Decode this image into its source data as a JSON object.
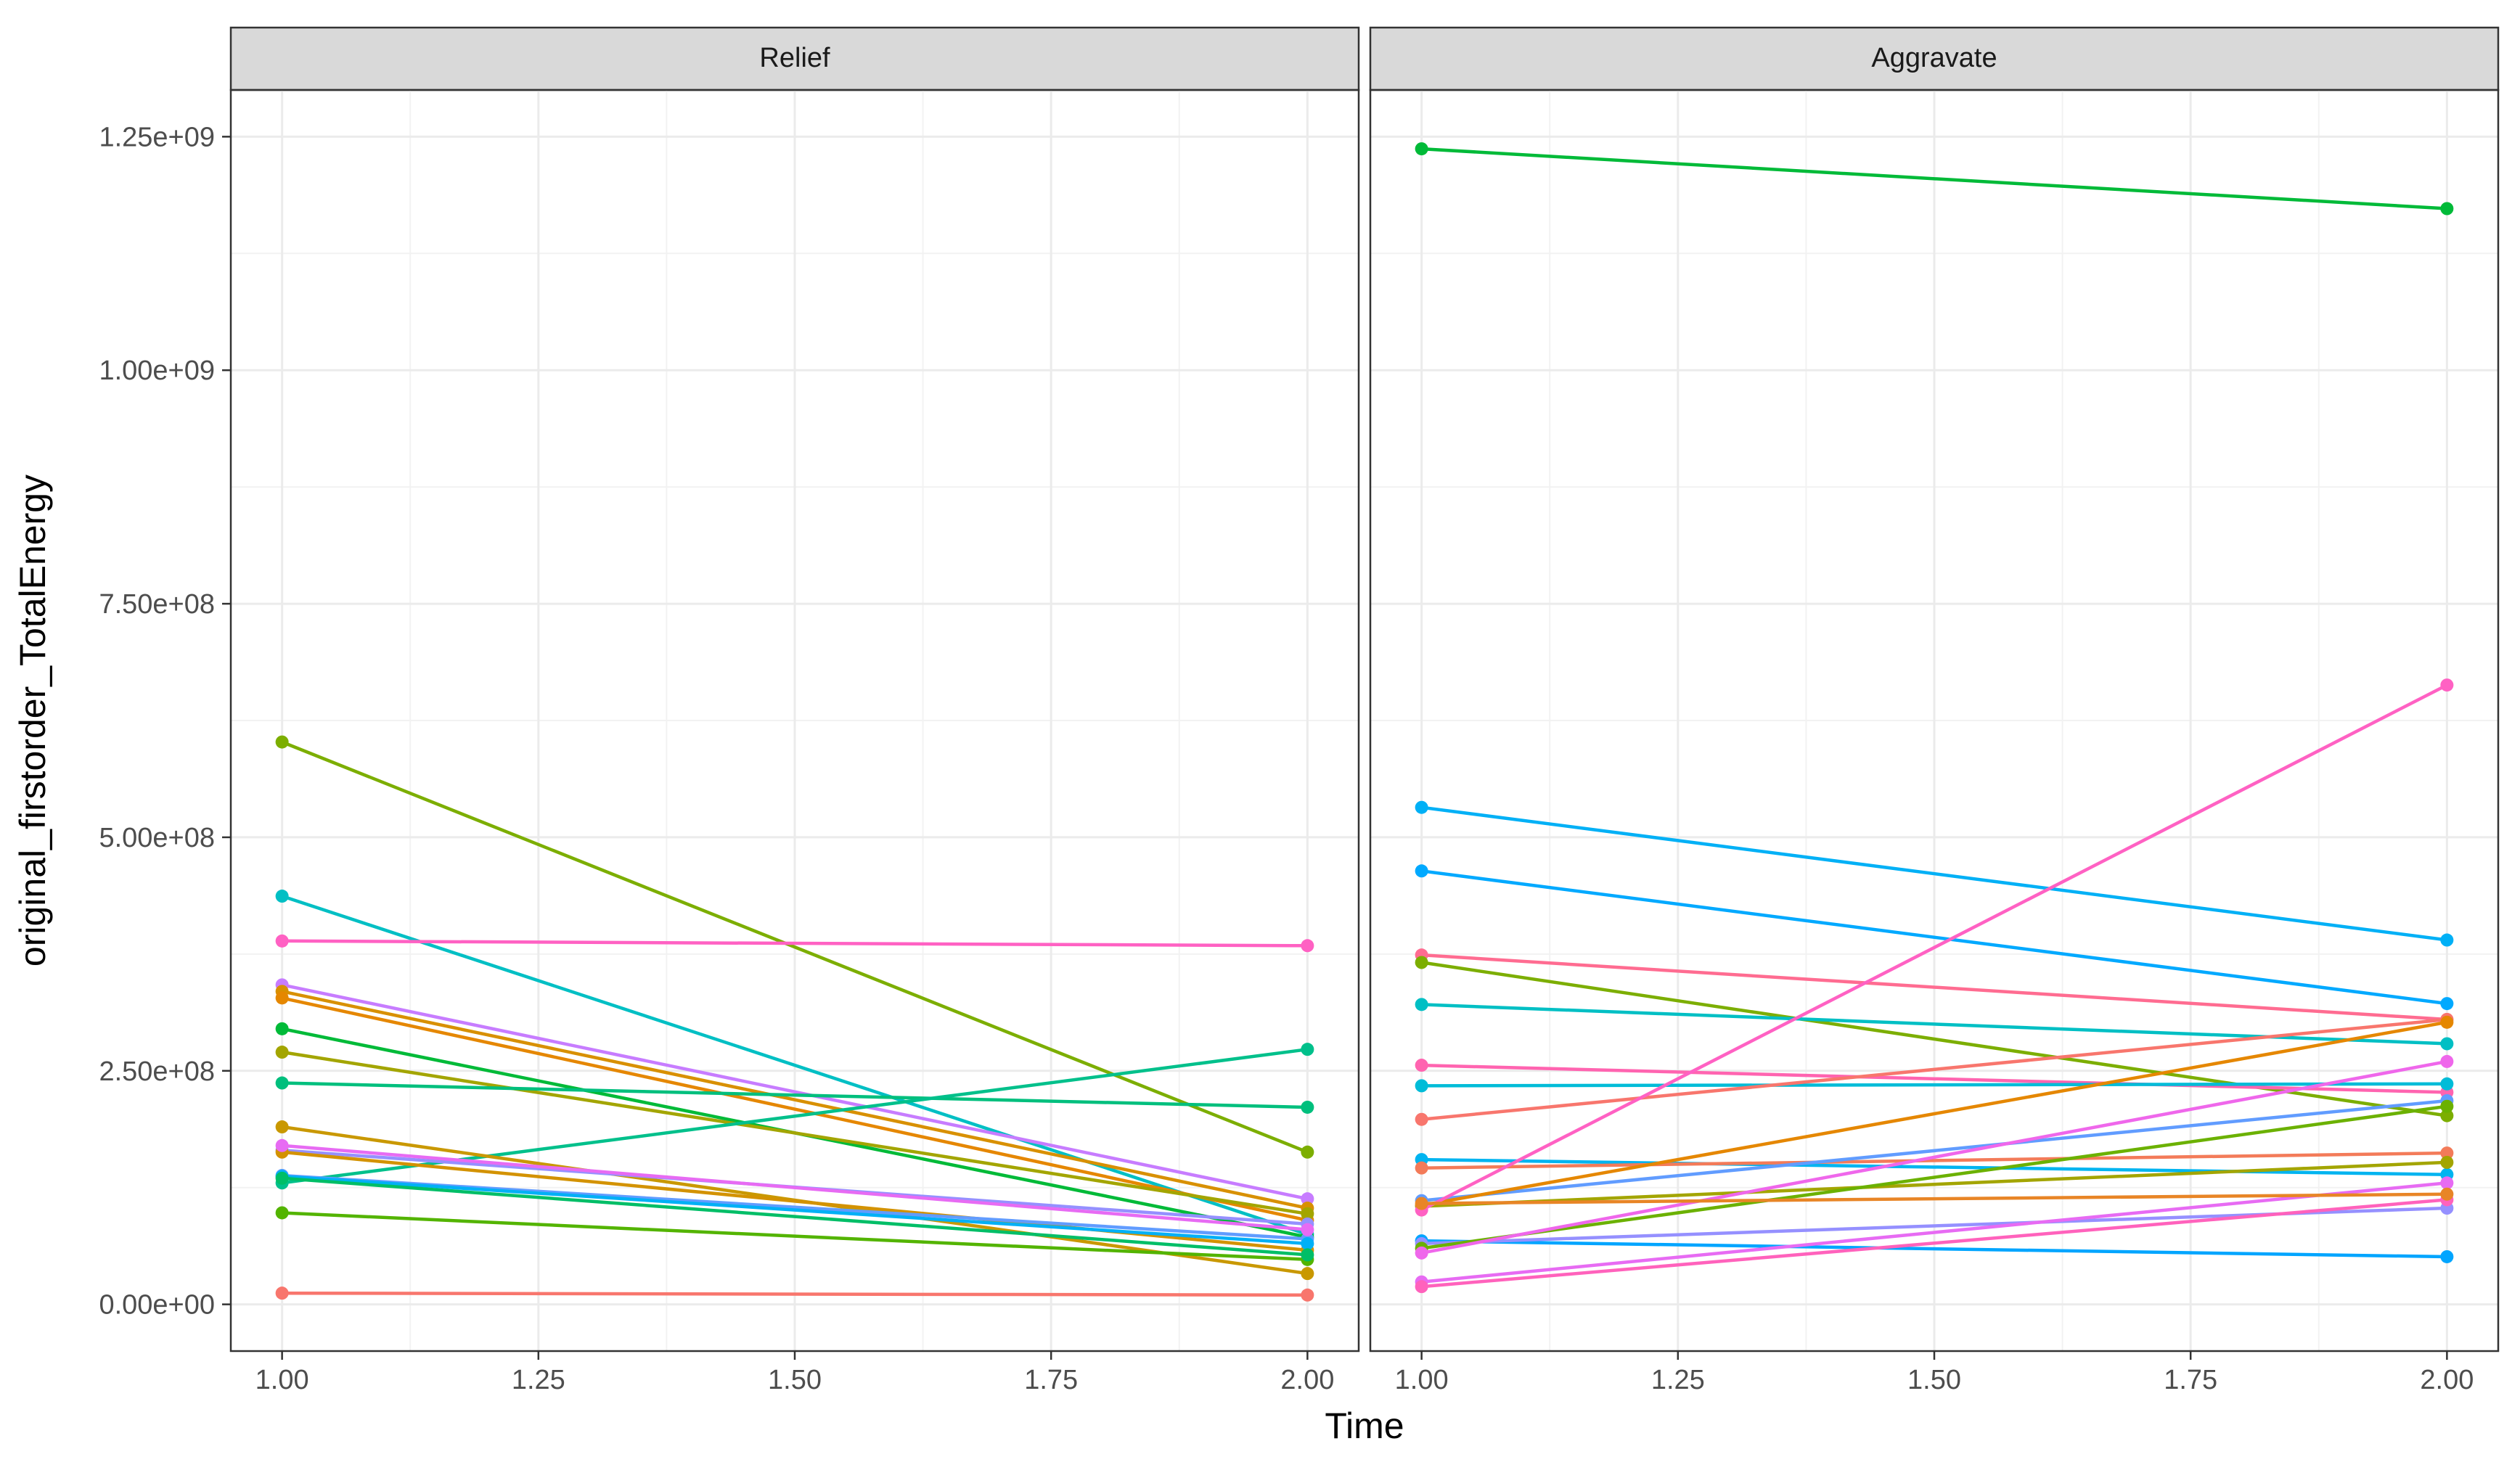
{
  "chart_data": {
    "type": "line",
    "xlabel": "Time",
    "ylabel": "original_firstorder_TotalEnergy",
    "xlim": [
      0.95,
      2.05
    ],
    "ylim": [
      -50000000,
      1300000000
    ],
    "x_ticks": [
      1.0,
      1.25,
      1.5,
      1.75,
      2.0
    ],
    "x_tick_labels": [
      "1.00",
      "1.25",
      "1.50",
      "1.75",
      "2.00"
    ],
    "y_ticks": [
      0,
      250000000,
      500000000,
      750000000,
      1000000000,
      1250000000
    ],
    "y_tick_labels": [
      "0.00e+00",
      "2.50e+08",
      "5.00e+08",
      "7.50e+08",
      "1.00e+09",
      "1.25e+09"
    ],
    "grid": true,
    "facets": [
      {
        "strip_label": "Relief",
        "series": [
          {
            "color": "#7CAE00",
            "x": [
              1,
              2
            ],
            "y": [
              602000000,
              163000000
            ]
          },
          {
            "color": "#00BFC4",
            "x": [
              1,
              2
            ],
            "y": [
              437000000,
              75000000
            ]
          },
          {
            "color": "#FF61C3",
            "x": [
              1,
              2
            ],
            "y": [
              389000000,
              384000000
            ]
          },
          {
            "color": "#C77CFF",
            "x": [
              1,
              2
            ],
            "y": [
              342000000,
              113000000
            ]
          },
          {
            "color": "#D89000",
            "x": [
              1,
              2
            ],
            "y": [
              335000000,
              103000000
            ]
          },
          {
            "color": "#E58700",
            "x": [
              1,
              2
            ],
            "y": [
              328000000,
              90000000
            ]
          },
          {
            "color": "#00BA38",
            "x": [
              1,
              2
            ],
            "y": [
              295000000,
              72000000
            ]
          },
          {
            "color": "#A3A500",
            "x": [
              1,
              2
            ],
            "y": [
              270000000,
              97000000
            ]
          },
          {
            "color": "#00BF7D",
            "x": [
              1,
              2
            ],
            "y": [
              237000000,
              211000000
            ]
          },
          {
            "color": "#00C08B",
            "x": [
              1,
              2
            ],
            "y": [
              130000000,
              273000000
            ]
          },
          {
            "color": "#C99800",
            "x": [
              1,
              2
            ],
            "y": [
              190000000,
              33000000
            ]
          },
          {
            "color": "#9590FF",
            "x": [
              1,
              2
            ],
            "y": [
              165000000,
              86000000
            ]
          },
          {
            "color": "#D39200",
            "x": [
              1,
              2
            ],
            "y": [
              163000000,
              58000000
            ]
          },
          {
            "color": "#619CFF",
            "x": [
              1,
              2
            ],
            "y": [
              138000000,
              70000000
            ]
          },
          {
            "color": "#00B0F6",
            "x": [
              1,
              2
            ],
            "y": [
              137000000,
              65000000
            ]
          },
          {
            "color": "#53B400",
            "x": [
              1,
              2
            ],
            "y": [
              98000000,
              48000000
            ]
          },
          {
            "color": "#00BE67",
            "x": [
              1,
              2
            ],
            "y": [
              135000000,
              53000000
            ]
          },
          {
            "color": "#F8766D",
            "x": [
              1,
              2
            ],
            "y": [
              12000000,
              10000000
            ]
          },
          {
            "color": "#E76BF3",
            "x": [
              1,
              2
            ],
            "y": [
              170000000,
              80000000
            ]
          }
        ]
      },
      {
        "strip_label": "Aggravate",
        "series": [
          {
            "color": "#00BA38",
            "x": [
              1,
              2
            ],
            "y": [
              1237000000,
              1173000000
            ]
          },
          {
            "color": "#00B0F6",
            "x": [
              1,
              2
            ],
            "y": [
              532000000,
              390000000
            ]
          },
          {
            "color": "#00A9FF",
            "x": [
              1,
              2
            ],
            "y": [
              464000000,
              322000000
            ]
          },
          {
            "color": "#FF6C91",
            "x": [
              1,
              2
            ],
            "y": [
              374000000,
              305000000
            ]
          },
          {
            "color": "#7CAE00",
            "x": [
              1,
              2
            ],
            "y": [
              366000000,
              202000000
            ]
          },
          {
            "color": "#00BFC4",
            "x": [
              1,
              2
            ],
            "y": [
              321000000,
              279000000
            ]
          },
          {
            "color": "#FF64B0",
            "x": [
              1,
              2
            ],
            "y": [
              256000000,
              227000000
            ]
          },
          {
            "color": "#00BCD8",
            "x": [
              1,
              2
            ],
            "y": [
              234000000,
              236000000
            ]
          },
          {
            "color": "#F8766D",
            "x": [
              1,
              2
            ],
            "y": [
              198000000,
              305000000
            ]
          },
          {
            "color": "#00B4F0",
            "x": [
              1,
              2
            ],
            "y": [
              155000000,
              139000000
            ]
          },
          {
            "color": "#F37B59",
            "x": [
              1,
              2
            ],
            "y": [
              146000000,
              162000000
            ]
          },
          {
            "color": "#619CFF",
            "x": [
              1,
              2
            ],
            "y": [
              111000000,
              218000000
            ]
          },
          {
            "color": "#E58700",
            "x": [
              1,
              2
            ],
            "y": [
              106000000,
              302000000
            ]
          },
          {
            "color": "#A3A500",
            "x": [
              1,
              2
            ],
            "y": [
              105000000,
              152000000
            ]
          },
          {
            "color": "#FF61C3",
            "x": [
              1,
              2
            ],
            "y": [
              101000000,
              663000000
            ]
          },
          {
            "color": "#00A5FF",
            "x": [
              1,
              2
            ],
            "y": [
              68000000,
              51000000
            ]
          },
          {
            "color": "#9590FF",
            "x": [
              1,
              2
            ],
            "y": [
              65000000,
              103000000
            ]
          },
          {
            "color": "#6BB100",
            "x": [
              1,
              2
            ],
            "y": [
              60000000,
              212000000
            ]
          },
          {
            "color": "#EF67EB",
            "x": [
              1,
              2
            ],
            "y": [
              55000000,
              260000000
            ]
          },
          {
            "color": "#E76BF3",
            "x": [
              1,
              2
            ],
            "y": [
              24000000,
              130000000
            ]
          },
          {
            "color": "#FF62BC",
            "x": [
              1,
              2
            ],
            "y": [
              19000000,
              112000000
            ]
          },
          {
            "color": "#E88526",
            "x": [
              1,
              2
            ],
            "y": [
              108000000,
              118000000
            ]
          }
        ]
      }
    ]
  }
}
